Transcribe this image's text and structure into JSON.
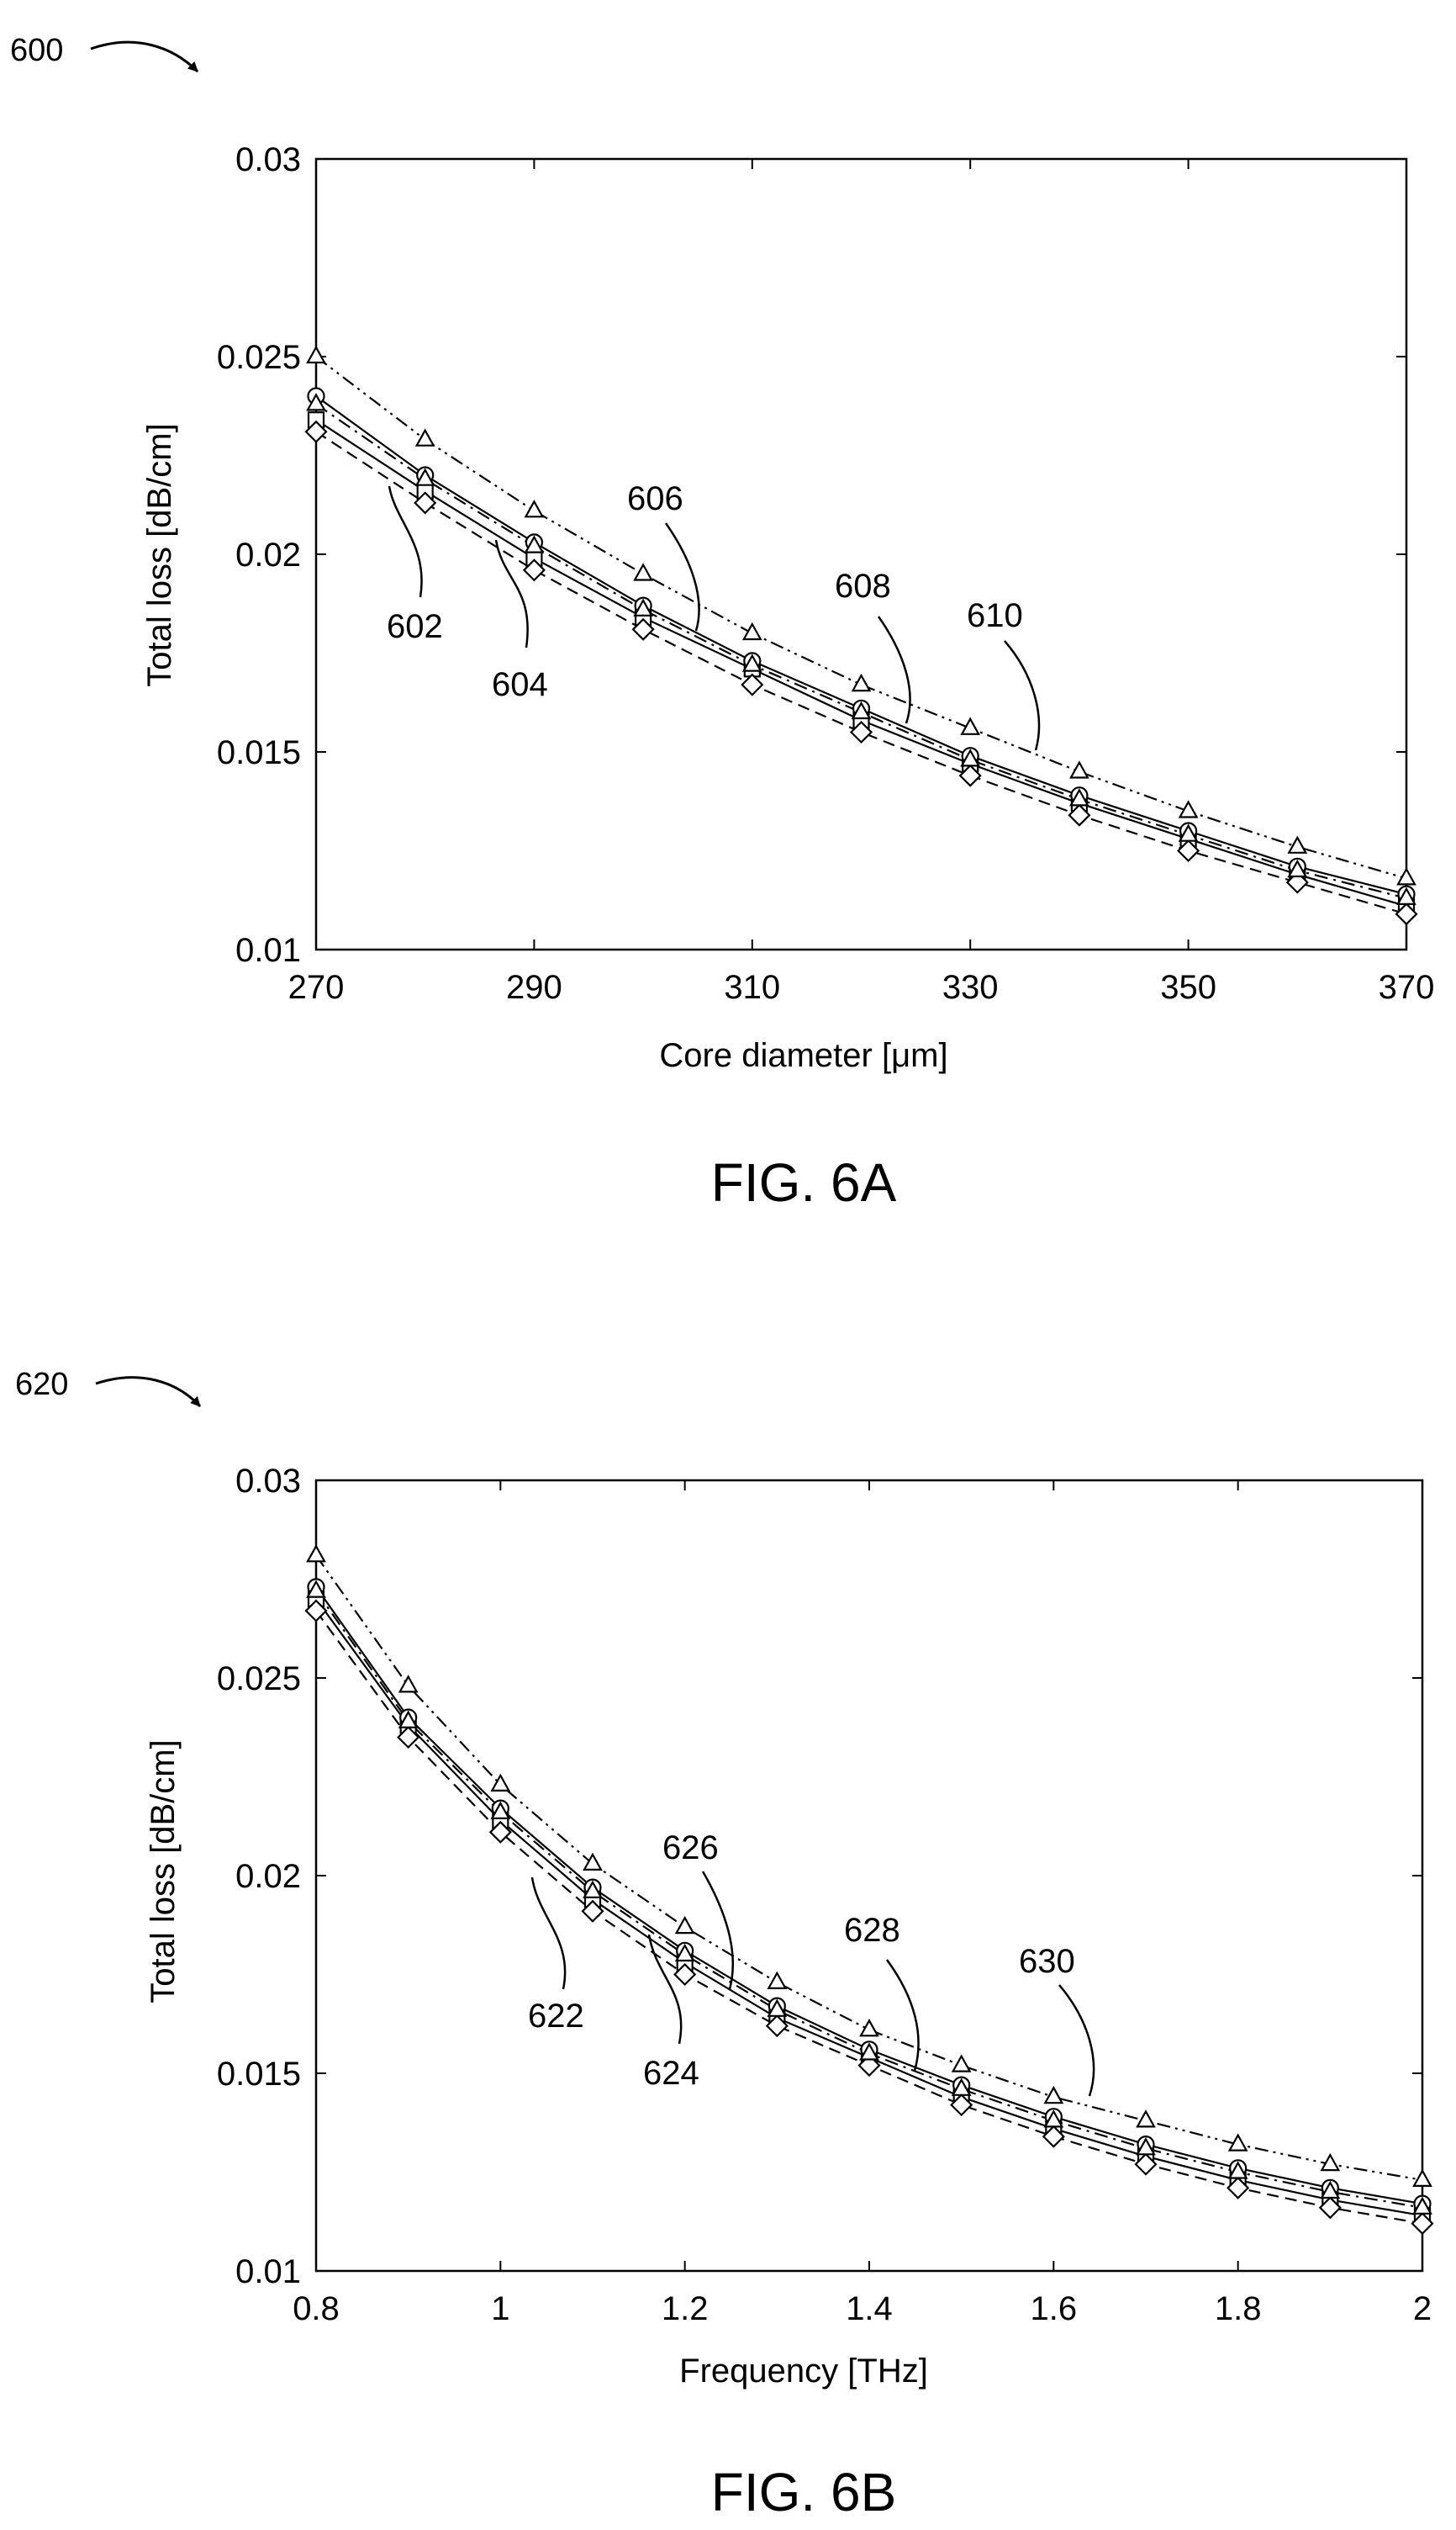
{
  "figures": [
    {
      "ref": "600",
      "caption": "FIG. 6A",
      "chart_data": {
        "type": "line",
        "title": "",
        "xlabel": "Core diameter [μm]",
        "ylabel": "Total loss [dB/cm]",
        "xlim": [
          270,
          370
        ],
        "ylim": [
          0.01,
          0.03
        ],
        "xticks": [
          "270",
          "290",
          "310",
          "330",
          "350",
          "370"
        ],
        "yticks": [
          "0.01",
          "0.015",
          "0.02",
          "0.025",
          "0.03"
        ],
        "grid": false,
        "x": [
          270,
          280,
          290,
          300,
          310,
          320,
          330,
          340,
          350,
          360,
          370
        ],
        "series": [
          {
            "name": "602",
            "marker": "square",
            "line": "solid",
            "values": [
              0.0234,
              0.0216,
              0.0199,
              0.0184,
              0.0171,
              0.0158,
              0.0147,
              0.0137,
              0.0128,
              0.0119,
              0.0111
            ]
          },
          {
            "name": "604",
            "marker": "diamond",
            "line": "dashed",
            "values": [
              0.0231,
              0.0213,
              0.0196,
              0.0181,
              0.0167,
              0.0155,
              0.0144,
              0.0134,
              0.0125,
              0.0117,
              0.0109
            ]
          },
          {
            "name": "606",
            "marker": "circle",
            "line": "solid",
            "values": [
              0.024,
              0.022,
              0.0203,
              0.0187,
              0.0173,
              0.0161,
              0.0149,
              0.0139,
              0.013,
              0.0121,
              0.0114
            ]
          },
          {
            "name": "608",
            "marker": "triangle",
            "line": "dashdot",
            "values": [
              0.0238,
              0.0219,
              0.0202,
              0.0186,
              0.0172,
              0.016,
              0.0148,
              0.0138,
              0.0129,
              0.012,
              0.0113
            ]
          },
          {
            "name": "610",
            "marker": "triangle",
            "line": "dashdotdot",
            "values": [
              0.025,
              0.0229,
              0.0211,
              0.0195,
              0.018,
              0.0167,
              0.0156,
              0.0145,
              0.0135,
              0.0126,
              0.0118
            ]
          }
        ]
      }
    },
    {
      "ref": "620",
      "caption": "FIG. 6B",
      "chart_data": {
        "type": "line",
        "title": "",
        "xlabel": "Frequency [THz]",
        "ylabel": "Total loss [dB/cm]",
        "xlim": [
          0.8,
          2.0
        ],
        "ylim": [
          0.01,
          0.03
        ],
        "xticks": [
          "0.8",
          "1",
          "1.2",
          "1.4",
          "1.6",
          "1.8",
          "2"
        ],
        "yticks": [
          "0.01",
          "0.015",
          "0.02",
          "0.025",
          "0.03"
        ],
        "grid": false,
        "x": [
          0.8,
          0.9,
          1.0,
          1.1,
          1.2,
          1.3,
          1.4,
          1.5,
          1.6,
          1.7,
          1.8,
          1.9,
          2.0
        ],
        "series": [
          {
            "name": "622",
            "marker": "square",
            "line": "solid",
            "values": [
              0.027,
              0.0238,
              0.0214,
              0.0194,
              0.0178,
              0.0164,
              0.0154,
              0.0144,
              0.0136,
              0.0129,
              0.0123,
              0.0118,
              0.0114
            ]
          },
          {
            "name": "624",
            "marker": "diamond",
            "line": "dashed",
            "values": [
              0.0267,
              0.0235,
              0.0211,
              0.0191,
              0.0175,
              0.0162,
              0.0152,
              0.0142,
              0.0134,
              0.0127,
              0.0121,
              0.0116,
              0.0112
            ]
          },
          {
            "name": "626",
            "marker": "circle",
            "line": "solid",
            "values": [
              0.0273,
              0.024,
              0.0217,
              0.0197,
              0.0181,
              0.0167,
              0.0156,
              0.0147,
              0.0139,
              0.0132,
              0.0126,
              0.0121,
              0.0117
            ]
          },
          {
            "name": "628",
            "marker": "triangle",
            "line": "dashdot",
            "values": [
              0.0272,
              0.0239,
              0.0216,
              0.0196,
              0.018,
              0.0166,
              0.0155,
              0.0146,
              0.0138,
              0.0131,
              0.0125,
              0.012,
              0.0116
            ]
          },
          {
            "name": "630",
            "marker": "triangle",
            "line": "dashdotdot",
            "values": [
              0.0281,
              0.0248,
              0.0223,
              0.0203,
              0.0187,
              0.0173,
              0.0161,
              0.0152,
              0.0144,
              0.0138,
              0.0132,
              0.0127,
              0.0123
            ]
          }
        ]
      }
    }
  ]
}
